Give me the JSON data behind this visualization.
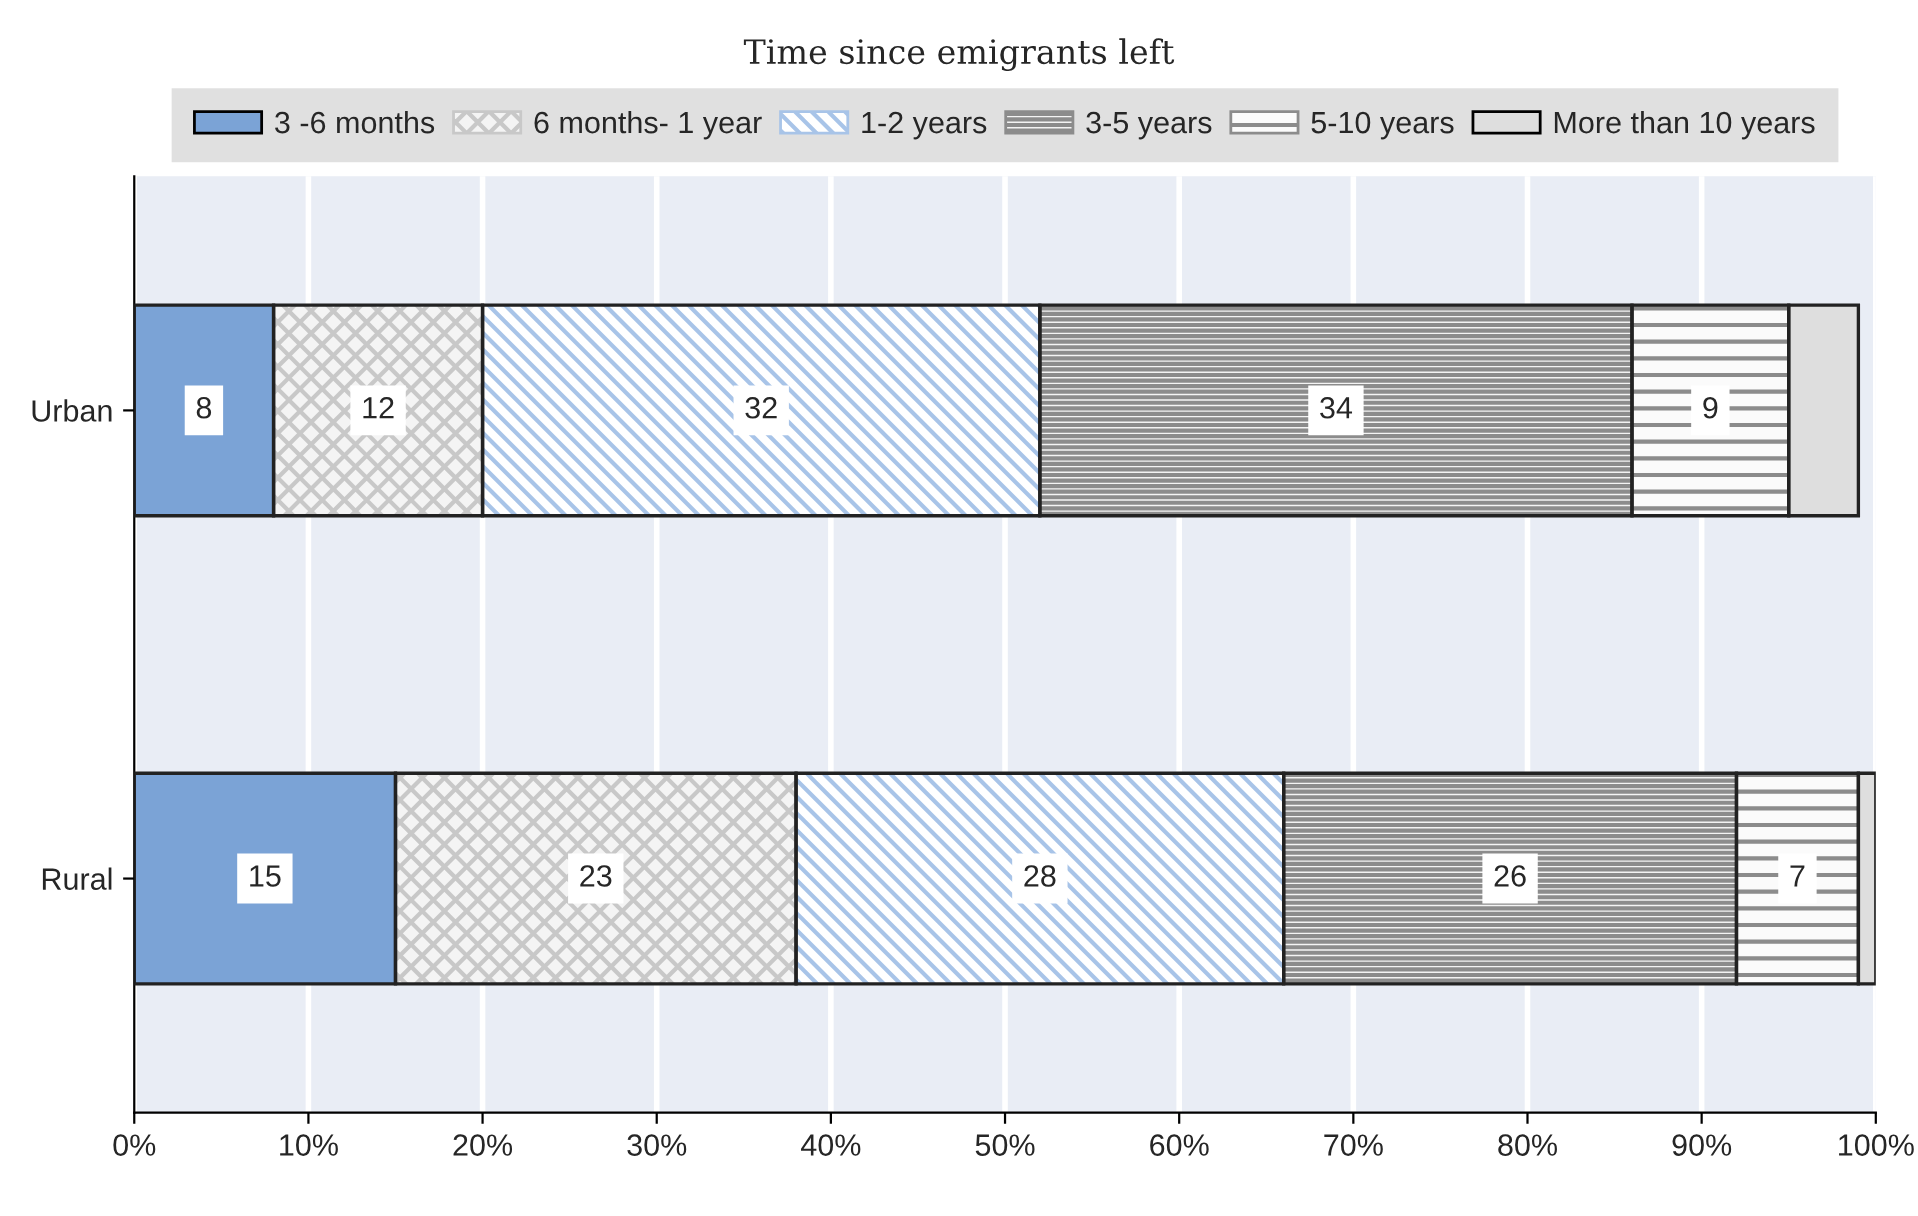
{
  "chart_data": {
    "type": "bar",
    "orientation": "horizontal",
    "stacked": true,
    "title": "Time since emigrants left",
    "categories": [
      "Urban",
      "Rural"
    ],
    "series": [
      {
        "name": "3 -6 months",
        "color": "#7ba3d6",
        "values": [
          8,
          15
        ],
        "value_labels": [
          "8",
          "15"
        ]
      },
      {
        "name": "6 months- 1 year",
        "color": "#f4f4f4",
        "values": [
          12,
          23
        ],
        "value_labels": [
          "12",
          "23"
        ]
      },
      {
        "name": "1-2 years",
        "color": "#ffffff",
        "values": [
          32,
          28
        ],
        "value_labels": [
          "32",
          "28"
        ]
      },
      {
        "name": "3-5 years",
        "color": "#f4f4f4",
        "values": [
          34,
          26
        ],
        "value_labels": [
          "34",
          "26"
        ]
      },
      {
        "name": "5-10 years",
        "color": "#fbfbfb",
        "values": [
          9,
          7
        ],
        "value_labels": [
          "9",
          "7"
        ]
      },
      {
        "name": "More than 10 years",
        "color": "#dedede",
        "values": [
          4,
          1
        ],
        "value_labels": [
          null,
          null
        ]
      }
    ],
    "xlim": [
      0,
      100
    ],
    "xticks": [
      {
        "value": 0,
        "label": "0%"
      },
      {
        "value": 10,
        "label": "10%"
      },
      {
        "value": 20,
        "label": "20%"
      },
      {
        "value": 30,
        "label": "30%"
      },
      {
        "value": 40,
        "label": "40%"
      },
      {
        "value": 50,
        "label": "50%"
      },
      {
        "value": 60,
        "label": "60%"
      },
      {
        "value": 70,
        "label": "70%"
      },
      {
        "value": 80,
        "label": "80%"
      },
      {
        "value": 90,
        "label": "90%"
      },
      {
        "value": 100,
        "label": "100%"
      }
    ],
    "grid": "x",
    "legend": "top"
  }
}
